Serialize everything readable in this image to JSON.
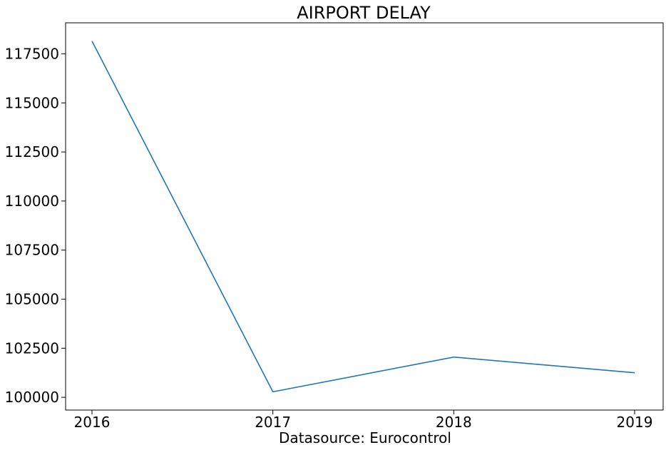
{
  "chart_data": {
    "type": "line",
    "title": "AIRPORT DELAY",
    "xlabel": "Datasource: Eurocontrol",
    "ylabel": "",
    "x": [
      "2016",
      "2017",
      "2018",
      "2019"
    ],
    "series": [
      {
        "values": [
          118150,
          100280,
          102050,
          101250
        ],
        "color": "#1f77b4"
      }
    ],
    "yticks": [
      100000,
      102500,
      105000,
      107500,
      110000,
      112500,
      115000,
      117500
    ],
    "ylim": [
      99350,
      119080
    ],
    "grid": false
  }
}
